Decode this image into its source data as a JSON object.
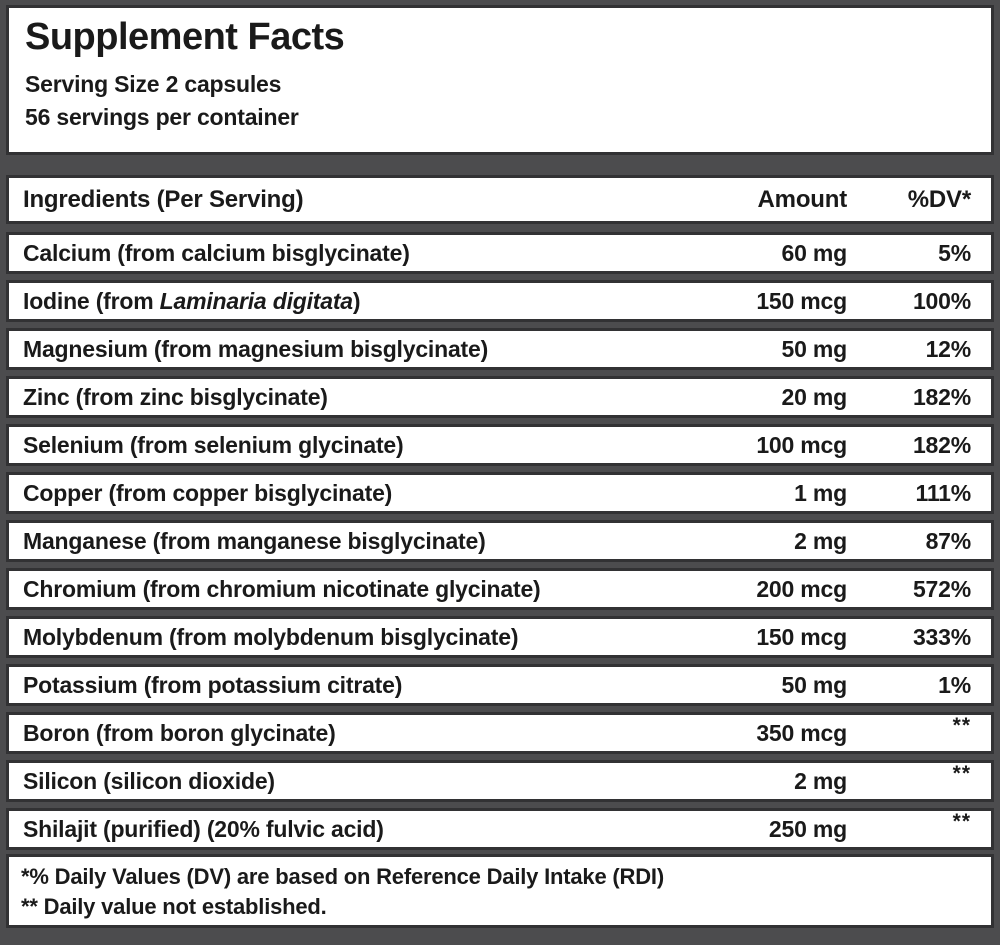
{
  "header": {
    "title": "Supplement Facts",
    "serving_size": "Serving Size 2 capsules",
    "servings_per_container": "56 servings per container"
  },
  "table": {
    "columns": {
      "ingredients": "Ingredients (Per Serving)",
      "amount": "Amount",
      "dv": "%DV*"
    },
    "rows": [
      {
        "pre": "Calcium (from calcium bisglycinate)",
        "italic": "",
        "post": "",
        "amount": "60 mg",
        "dv": "5%"
      },
      {
        "pre": "Iodine (from ",
        "italic": "Laminaria digitata",
        "post": ")",
        "amount": "150 mcg",
        "dv": "100%"
      },
      {
        "pre": "Magnesium (from magnesium bisglycinate)",
        "italic": "",
        "post": "",
        "amount": "50 mg",
        "dv": "12%"
      },
      {
        "pre": "Zinc (from zinc bisglycinate)",
        "italic": "",
        "post": "",
        "amount": "20 mg",
        "dv": "182%"
      },
      {
        "pre": "Selenium (from selenium glycinate)",
        "italic": "",
        "post": "",
        "amount": "100 mcg",
        "dv": "182%"
      },
      {
        "pre": "Copper (from copper bisglycinate)",
        "italic": "",
        "post": "",
        "amount": "1 mg",
        "dv": "111%"
      },
      {
        "pre": "Manganese (from manganese bisglycinate)",
        "italic": "",
        "post": "",
        "amount": "2 mg",
        "dv": "87%"
      },
      {
        "pre": "Chromium (from chromium nicotinate glycinate)",
        "italic": "",
        "post": "",
        "amount": "200 mcg",
        "dv": "572%"
      },
      {
        "pre": "Molybdenum (from molybdenum bisglycinate)",
        "italic": "",
        "post": "",
        "amount": "150 mcg",
        "dv": "333%"
      },
      {
        "pre": "Potassium (from potassium citrate)",
        "italic": "",
        "post": "",
        "amount": "50 mg",
        "dv": "1%"
      },
      {
        "pre": "Boron (from boron glycinate)",
        "italic": "",
        "post": "",
        "amount": "350 mcg",
        "dv": "**"
      },
      {
        "pre": "Silicon (silicon dioxide)",
        "italic": "",
        "post": "",
        "amount": "2 mg",
        "dv": "**"
      },
      {
        "pre": "Shilajit (purified) (20% fulvic acid)",
        "italic": "",
        "post": "",
        "amount": "250 mg",
        "dv": "**"
      }
    ]
  },
  "footnotes": {
    "dv_note": "*% Daily Values (DV) are based on Reference Daily Intake (RDI)",
    "not_established_note": "** Daily value not established."
  },
  "colors": {
    "frame_gray": "#4c4c4e",
    "border_dark": "#323234",
    "text": "#1a1a1a",
    "box_background": "#ffffff"
  }
}
